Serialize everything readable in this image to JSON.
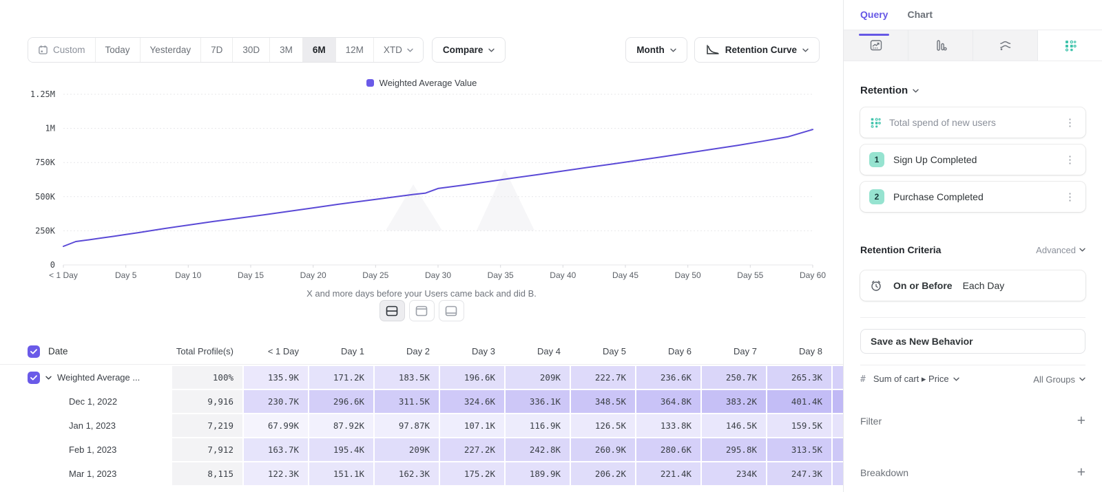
{
  "toolbar": {
    "date_ranges": [
      "Custom",
      "Today",
      "Yesterday",
      "7D",
      "30D",
      "3M",
      "6M",
      "12M",
      "XTD"
    ],
    "selected_range": "6M",
    "compare_label": "Compare",
    "granularity": "Month",
    "chart_type": "Retention Curve"
  },
  "chart_data": {
    "type": "line",
    "legend": "Weighted Average Value",
    "legend_position": "top-center",
    "grid": "horizontal-dashed",
    "xlim_days": [
      0,
      60
    ],
    "ylim_k": [
      0,
      1250
    ],
    "y_ticks": [
      {
        "label": "1.25M",
        "k": 1250
      },
      {
        "label": "1M",
        "k": 1000
      },
      {
        "label": "750K",
        "k": 750
      },
      {
        "label": "500K",
        "k": 500
      },
      {
        "label": "250K",
        "k": 250
      },
      {
        "label": "0",
        "k": 0
      }
    ],
    "x_ticks": [
      {
        "label": "< 1 Day",
        "day": 0
      },
      {
        "label": "Day 5",
        "day": 5
      },
      {
        "label": "Day 10",
        "day": 10
      },
      {
        "label": "Day 15",
        "day": 15
      },
      {
        "label": "Day 20",
        "day": 20
      },
      {
        "label": "Day 25",
        "day": 25
      },
      {
        "label": "Day 30",
        "day": 30
      },
      {
        "label": "Day 35",
        "day": 35
      },
      {
        "label": "Day 40",
        "day": 40
      },
      {
        "label": "Day 45",
        "day": 45
      },
      {
        "label": "Day 50",
        "day": 50
      },
      {
        "label": "Day 55",
        "day": 55
      },
      {
        "label": "Day 60",
        "day": 60
      }
    ],
    "series": [
      {
        "name": "Weighted Average Value",
        "color": "#5a49d6",
        "points_day_valueK": [
          [
            0,
            135.9
          ],
          [
            1,
            171.2
          ],
          [
            2,
            183.5
          ],
          [
            3,
            196.6
          ],
          [
            4,
            209
          ],
          [
            5,
            222.7
          ],
          [
            6,
            236.6
          ],
          [
            7,
            250.7
          ],
          [
            8,
            265.3
          ],
          [
            10,
            292
          ],
          [
            12,
            318
          ],
          [
            14,
            342
          ],
          [
            16,
            366
          ],
          [
            18,
            392
          ],
          [
            20,
            418
          ],
          [
            22,
            444
          ],
          [
            24,
            468
          ],
          [
            26,
            492
          ],
          [
            28,
            516
          ],
          [
            29,
            526
          ],
          [
            30,
            560
          ],
          [
            32,
            584
          ],
          [
            34,
            610
          ],
          [
            36,
            636
          ],
          [
            38,
            662
          ],
          [
            40,
            688
          ],
          [
            42,
            714
          ],
          [
            44,
            740
          ],
          [
            46,
            766
          ],
          [
            48,
            793
          ],
          [
            50,
            820
          ],
          [
            52,
            848
          ],
          [
            54,
            876
          ],
          [
            56,
            906
          ],
          [
            58,
            938
          ],
          [
            60,
            992
          ]
        ]
      }
    ],
    "caption": "X and more days before your Users came back and did B."
  },
  "view_toggles": {
    "modes": [
      "split-view",
      "chart-view",
      "table-view"
    ],
    "active": "split-view"
  },
  "table": {
    "headers": [
      "Date",
      "Total Profile(s)",
      "< 1 Day",
      "Day 1",
      "Day 2",
      "Day 3",
      "Day 4",
      "Day 5",
      "Day 6",
      "Day 7",
      "Day 8"
    ],
    "rows": [
      {
        "label": "Weighted Average ...",
        "checked": true,
        "expandable": true,
        "profiles": "100%",
        "values": [
          "135.9K",
          "171.2K",
          "183.5K",
          "196.6K",
          "209K",
          "222.7K",
          "236.6K",
          "250.7K",
          "265.3K"
        ]
      },
      {
        "label": "Dec 1, 2022",
        "profiles": "9,916",
        "values": [
          "230.7K",
          "296.6K",
          "311.5K",
          "324.6K",
          "336.1K",
          "348.5K",
          "364.8K",
          "383.2K",
          "401.4K"
        ]
      },
      {
        "label": "Jan 1, 2023",
        "profiles": "7,219",
        "values": [
          "67.99K",
          "87.92K",
          "97.87K",
          "107.1K",
          "116.9K",
          "126.5K",
          "133.8K",
          "146.5K",
          "159.5K"
        ]
      },
      {
        "label": "Feb 1, 2023",
        "profiles": "7,912",
        "values": [
          "163.7K",
          "195.4K",
          "209K",
          "227.2K",
          "242.8K",
          "260.9K",
          "280.6K",
          "295.8K",
          "313.5K"
        ]
      },
      {
        "label": "Mar 1, 2023",
        "profiles": "8,115",
        "values": [
          "122.3K",
          "151.1K",
          "162.3K",
          "175.2K",
          "189.9K",
          "206.2K",
          "221.4K",
          "234K",
          "247.3K"
        ]
      }
    ]
  },
  "panel": {
    "tabs": [
      {
        "label": "Query",
        "active": true
      },
      {
        "label": "Chart",
        "active": false
      }
    ],
    "icon_tabs": [
      {
        "name": "insights-icon",
        "active": false
      },
      {
        "name": "funnels-icon",
        "active": false
      },
      {
        "name": "flows-icon",
        "active": false
      },
      {
        "name": "retention-icon",
        "active": true
      }
    ],
    "section_title": "Retention",
    "behavior_card": {
      "title": "Total spend of new users"
    },
    "steps": [
      {
        "num": "1",
        "label": "Sign Up Completed"
      },
      {
        "num": "2",
        "label": "Purchase Completed"
      }
    ],
    "criteria": {
      "heading": "Retention Criteria",
      "mode": "Advanced",
      "condition": "On or Before",
      "window": "Each Day"
    },
    "save_button_label": "Save as New Behavior",
    "measure": {
      "symbol": "#",
      "label": "Sum of cart ▸ Price",
      "groups": "All Groups"
    },
    "filter": {
      "label": "Filter"
    },
    "breakdown": {
      "label": "Breakdown"
    }
  },
  "colors": {
    "accent_purple": "#6a5ae8",
    "line_purple": "#5a49d6",
    "cell_purple_rgb": "106,90,232",
    "teal": "#3fc3ab",
    "teal_badge_bg": "#96e3d0"
  }
}
